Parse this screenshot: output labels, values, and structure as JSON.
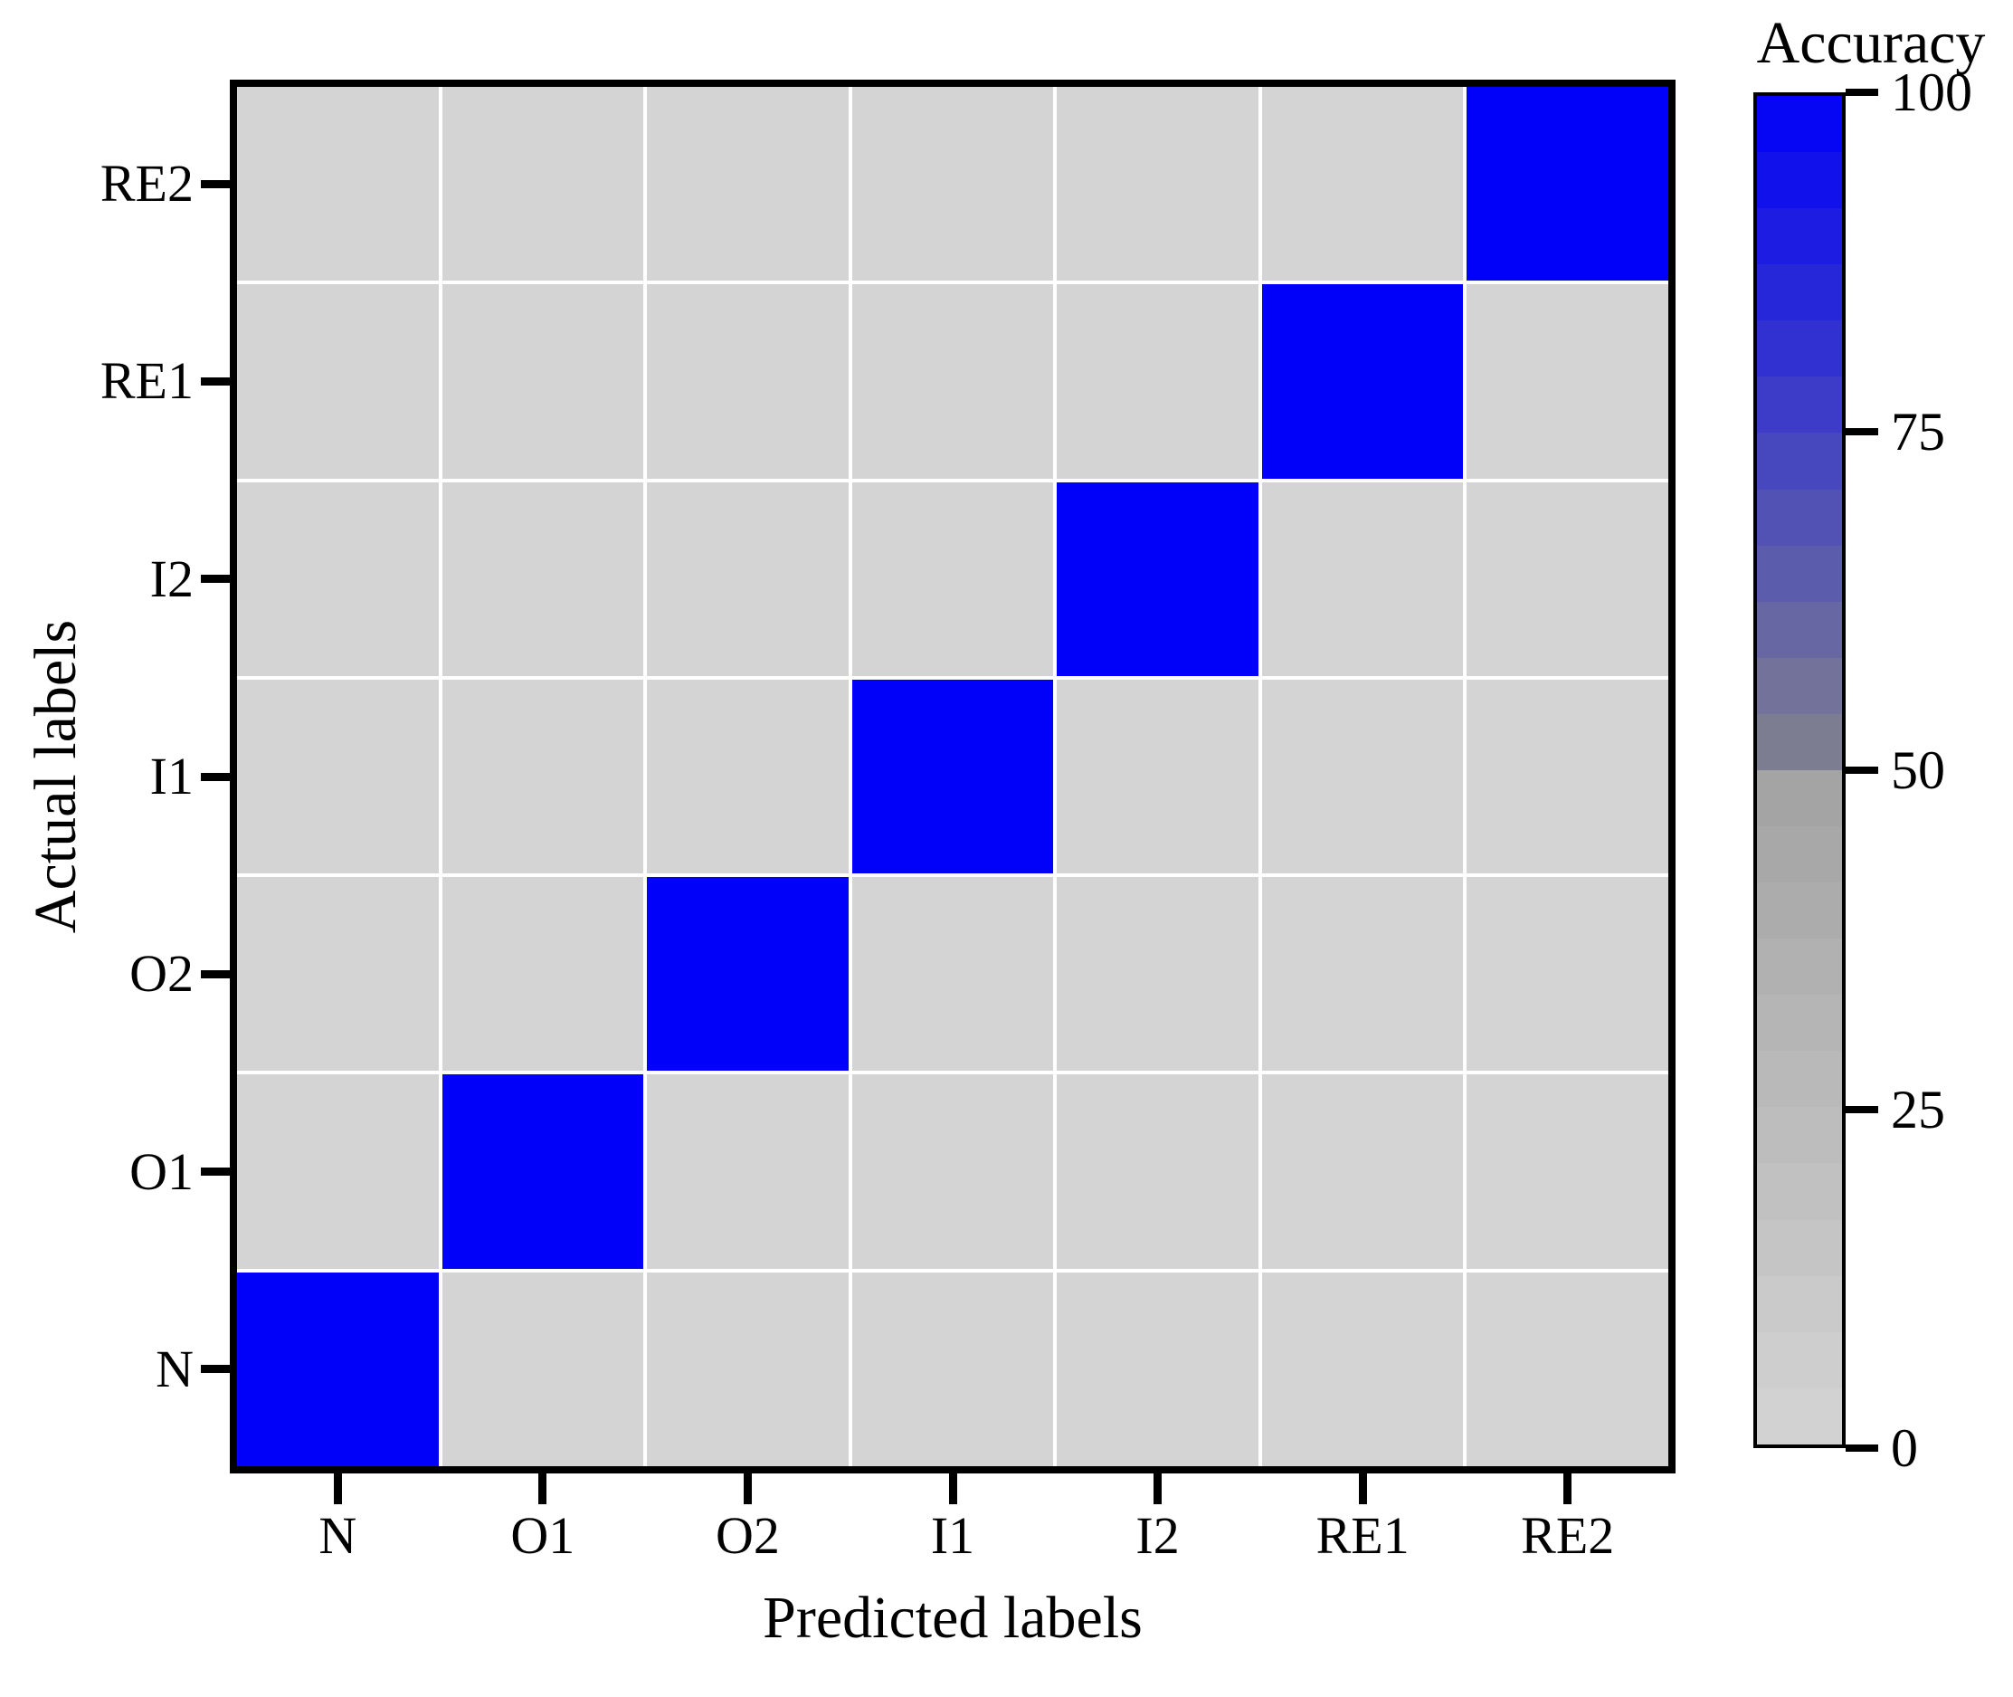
{
  "chart_data": {
    "type": "heatmap",
    "title": "",
    "xlabel": "Predicted labels",
    "ylabel": "Actual labels",
    "x_categories": [
      "N",
      "O1",
      "O2",
      "I1",
      "I2",
      "RE1",
      "RE2"
    ],
    "y_categories_top_to_bottom": [
      "RE2",
      "RE1",
      "I2",
      "I1",
      "O2",
      "O1",
      "N"
    ],
    "matrix_percent_rows_top_to_bottom": [
      [
        0,
        0,
        0,
        0,
        0,
        0,
        100
      ],
      [
        0,
        0,
        0,
        0,
        0,
        100,
        0
      ],
      [
        0,
        0,
        0,
        0,
        100,
        0,
        0
      ],
      [
        0,
        0,
        0,
        100,
        0,
        0,
        0
      ],
      [
        0,
        0,
        100,
        0,
        0,
        0,
        0
      ],
      [
        0,
        100,
        0,
        0,
        0,
        0,
        0
      ],
      [
        100,
        0,
        0,
        0,
        0,
        0,
        0
      ]
    ],
    "value_range": [
      0,
      100
    ],
    "grid": "white gridlines between cells",
    "legend": "none",
    "colormap": {
      "description": "discrete banded map: 0-50 light gray to mid gray, 50-100 slate blue-gray to pure blue",
      "low_gray": "#d4d4d4",
      "mid_gray": "#a2a2a2",
      "mid_blue": "#82828c",
      "high_blue": "#0101fa",
      "bands": 24,
      "gridline_color": "#ffffff",
      "border_color": "#000000"
    },
    "colorbar": {
      "title": "Accuracy",
      "tick_labels": [
        "100",
        "75",
        "50",
        "25",
        "0"
      ],
      "tick_values": [
        100,
        75,
        50,
        25,
        0
      ],
      "position": "right"
    }
  }
}
